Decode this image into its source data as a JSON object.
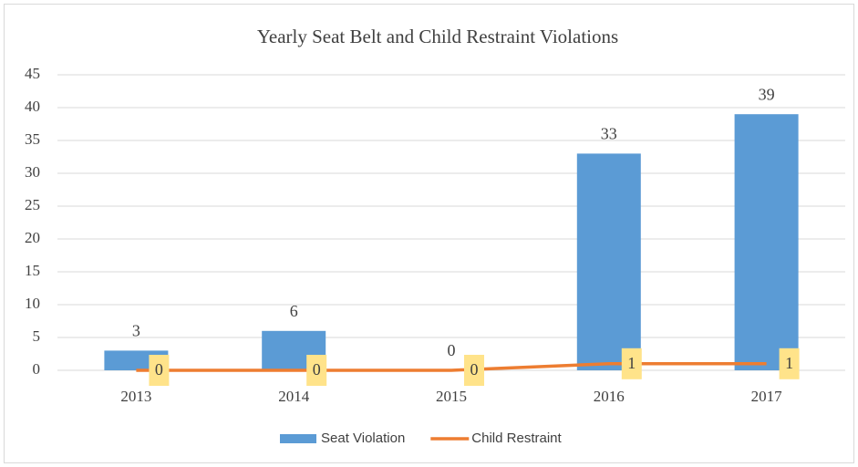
{
  "chart_data": {
    "type": "bar",
    "title": "Yearly Seat Belt and Child Restraint Violations",
    "categories": [
      "2013",
      "2014",
      "2015",
      "2016",
      "2017"
    ],
    "series": [
      {
        "name": "Seat Violation",
        "type": "bar",
        "color": "#5b9bd5",
        "values": [
          3,
          6,
          0,
          33,
          39
        ]
      },
      {
        "name": "Child Restraint",
        "type": "line",
        "color": "#ed7d31",
        "values": [
          0,
          0,
          0,
          1,
          1
        ]
      }
    ],
    "ylim": [
      0,
      45
    ],
    "yticks": [
      0,
      5,
      10,
      15,
      20,
      25,
      30,
      35,
      40,
      45
    ],
    "grid": true,
    "legend": "bottom"
  }
}
